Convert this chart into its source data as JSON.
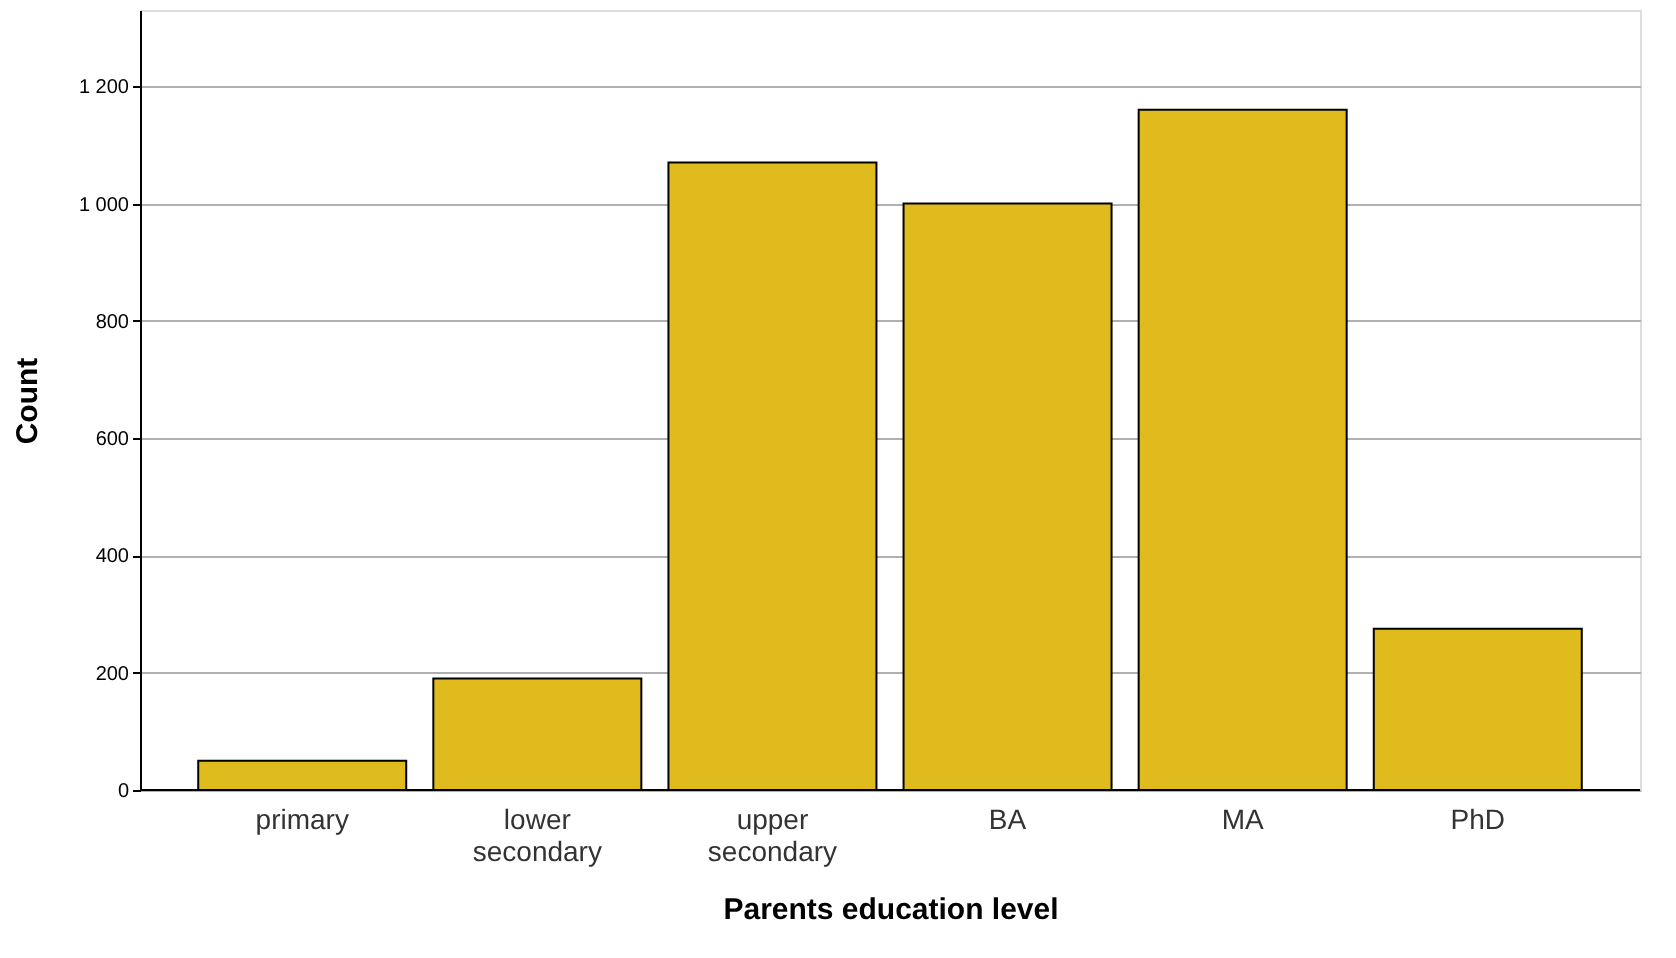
{
  "chart_data": {
    "type": "bar",
    "xlabel": "Parents education level",
    "ylabel": "Count",
    "categories": [
      "primary",
      "lower secondary",
      "upper secondary",
      "BA",
      "MA",
      "PhD"
    ],
    "values": [
      50,
      190,
      1070,
      1000,
      1160,
      275
    ],
    "color": "#e0bb1e",
    "ylim": [
      0,
      1330
    ],
    "yticks": [
      0,
      200,
      400,
      600,
      800,
      {
        "value": 1000,
        "label": "1 000"
      },
      {
        "value": 1200,
        "label": "1 200"
      }
    ],
    "grid": "y"
  }
}
